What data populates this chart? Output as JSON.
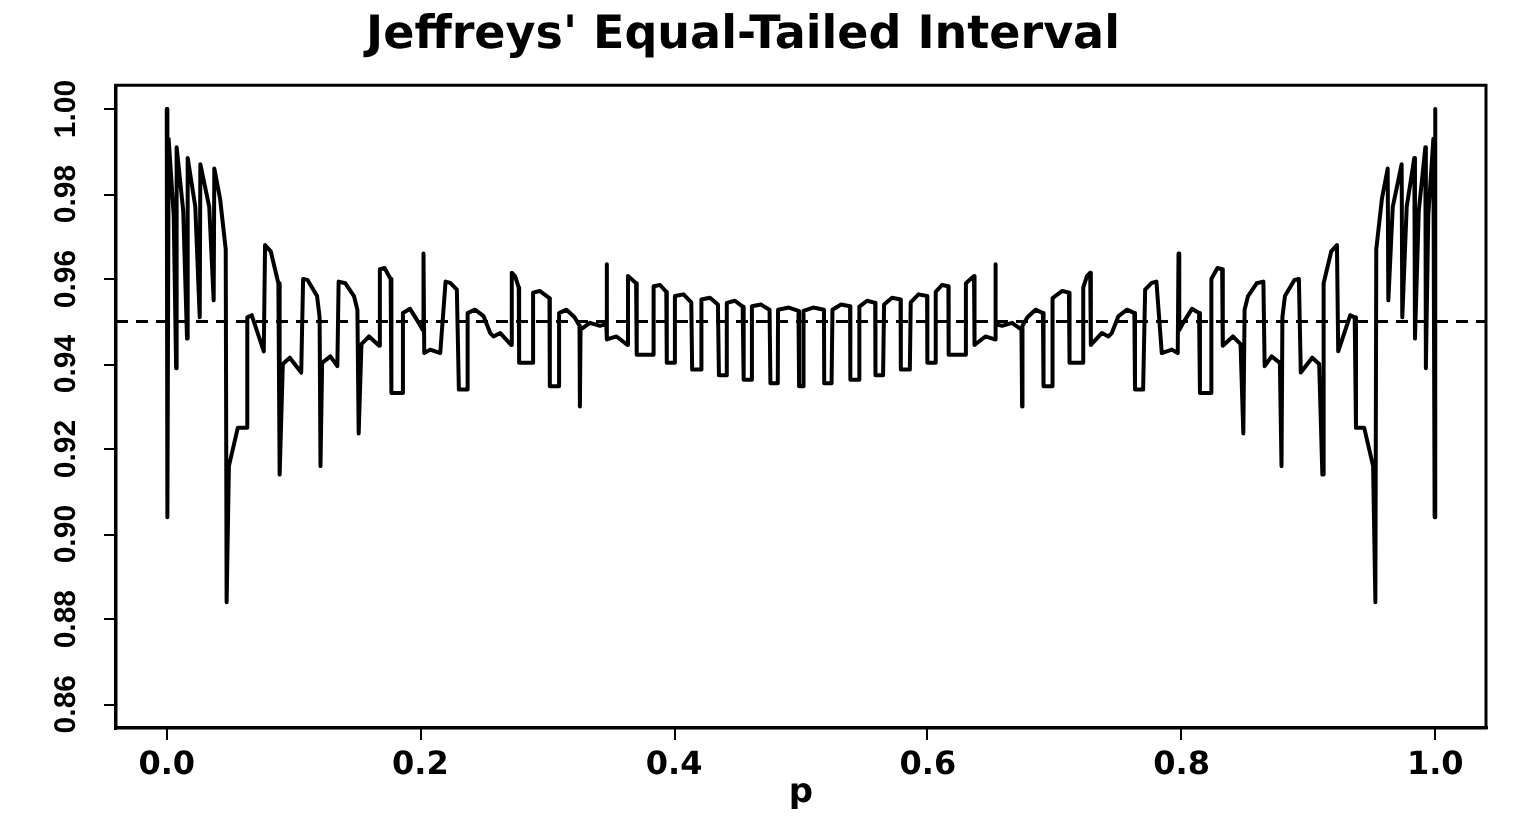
{
  "chart_data": {
    "type": "line",
    "title": "Jeffreys' Equal-Tailed Interval",
    "xlabel": "p",
    "color": "#000000",
    "line_style": "solid",
    "xlim": [
      -0.04,
      1.04
    ],
    "ylim": [
      0.8544,
      1.0056
    ],
    "xticks": [
      {
        "value": 0,
        "label": "0.0"
      },
      0.2,
      0.4,
      0.6,
      0.8,
      {
        "value": 1,
        "label": "1.0"
      }
    ],
    "yticks": [
      0.86,
      0.88,
      {
        "value": 0.9,
        "label": "0.90"
      },
      0.92,
      0.94,
      0.96,
      0.98,
      {
        "value": 1,
        "label": "1.00"
      }
    ],
    "ref_lines": [
      {
        "axis": "y",
        "value": 0.95,
        "color": "#000000",
        "line_style": "dashed"
      }
    ],
    "x": [
      0,
      0.0005,
      0.0015,
      0.0055,
      0.0074,
      0.0078,
      0.013,
      0.016,
      0.0165,
      0.0225,
      0.026,
      0.0265,
      0.0335,
      0.037,
      0.0375,
      0.042,
      0.0465,
      0.0472,
      0.049,
      0.056,
      0.0625,
      0.0635,
      0.067,
      0.0765,
      0.0775,
      0.082,
      0.088,
      0.089,
      0.0915,
      0.097,
      0.106,
      0.1075,
      0.111,
      0.1185,
      0.1205,
      0.1212,
      0.1225,
      0.129,
      0.1345,
      0.1355,
      0.1408,
      0.1476,
      0.1503,
      0.1513,
      0.1535,
      0.1595,
      0.1675,
      0.168,
      0.1717,
      0.1765,
      0.1771,
      0.1855,
      0.1862,
      0.1918,
      0.1987,
      0.2018,
      0.2024,
      0.203,
      0.2077,
      0.2156,
      0.2198,
      0.2235,
      0.2287,
      0.2303,
      0.2367,
      0.2372,
      0.243,
      0.2497,
      0.255,
      0.2576,
      0.2629,
      0.2715,
      0.272,
      0.2746,
      0.2775,
      0.2778,
      0.2883,
      0.2888,
      0.294,
      0.3017,
      0.302,
      0.3088,
      0.3093,
      0.3151,
      0.3215,
      0.3254,
      0.3257,
      0.3262,
      0.3336,
      0.3415,
      0.3465,
      0.3467,
      0.3472,
      0.3546,
      0.3632,
      0.3636,
      0.37,
      0.3705,
      0.3836,
      0.3838,
      0.3889,
      0.3938,
      0.3942,
      0.4004,
      0.4006,
      0.4074,
      0.4135,
      0.4142,
      0.4213,
      0.4215,
      0.4282,
      0.4345,
      0.4353,
      0.4413,
      0.4415,
      0.4479,
      0.454,
      0.4548,
      0.4611,
      0.4613,
      0.4684,
      0.4752,
      0.4759,
      0.4817,
      0.4819,
      0.4905,
      0.498,
      0.4985,
      0.5,
      0.5015,
      0.502,
      0.5095,
      0.5181,
      0.5183,
      0.5241,
      0.5248,
      0.5316,
      0.5387,
      0.5389,
      0.5452,
      0.546,
      0.5521,
      0.5585,
      0.5587,
      0.5647,
      0.5655,
      0.5718,
      0.5785,
      0.5787,
      0.5858,
      0.5865,
      0.5926,
      0.5994,
      0.5996,
      0.6058,
      0.6062,
      0.6111,
      0.6162,
      0.6164,
      0.6295,
      0.63,
      0.6364,
      0.6368,
      0.6454,
      0.6528,
      0.6533,
      0.6535,
      0.6585,
      0.6664,
      0.6738,
      0.6743,
      0.6746,
      0.6785,
      0.6849,
      0.6907,
      0.6912,
      0.698,
      0.6983,
      0.706,
      0.7112,
      0.7117,
      0.7222,
      0.7225,
      0.7254,
      0.728,
      0.7285,
      0.7371,
      0.7424,
      0.745,
      0.7503,
      0.757,
      0.7628,
      0.7633,
      0.7697,
      0.7713,
      0.7765,
      0.7802,
      0.7844,
      0.7923,
      0.797,
      0.7976,
      0.7982,
      0.8013,
      0.8082,
      0.8138,
      0.8145,
      0.8229,
      0.8235,
      0.8283,
      0.832,
      0.8325,
      0.8405,
      0.8465,
      0.8487,
      0.8497,
      0.8524,
      0.8592,
      0.8645,
      0.8655,
      0.871,
      0.8775,
      0.8788,
      0.8795,
      0.8815,
      0.889,
      0.8925,
      0.894,
      0.903,
      0.9085,
      0.911,
      0.912,
      0.918,
      0.9225,
      0.9235,
      0.933,
      0.9365,
      0.9375,
      0.944,
      0.951,
      0.9528,
      0.9535,
      0.958,
      0.9625,
      0.963,
      0.9665,
      0.9735,
      0.974,
      0.9775,
      0.9835,
      0.984,
      0.987,
      0.9922,
      0.9926,
      0.9945,
      0.9985,
      0.9995,
      1
    ],
    "values": [
      1,
      0.904,
      0.993,
      0.975,
      0.939,
      0.991,
      0.976,
      0.946,
      0.9885,
      0.977,
      0.951,
      0.987,
      0.977,
      0.955,
      0.986,
      0.979,
      0.967,
      0.884,
      0.916,
      0.925,
      0.925,
      0.951,
      0.9515,
      0.943,
      0.968,
      0.9665,
      0.959,
      0.914,
      0.94,
      0.9415,
      0.938,
      0.96,
      0.9598,
      0.956,
      0.951,
      0.916,
      0.9403,
      0.9418,
      0.9395,
      0.9594,
      0.959,
      0.956,
      0.9528,
      0.9237,
      0.9447,
      0.9465,
      0.9443,
      0.9623,
      0.9626,
      0.96,
      0.9332,
      0.9332,
      0.952,
      0.953,
      0.9497,
      0.948,
      0.966,
      0.9426,
      0.9434,
      0.9426,
      0.9594,
      0.9591,
      0.9575,
      0.934,
      0.934,
      0.952,
      0.9528,
      0.9513,
      0.9473,
      0.9465,
      0.9473,
      0.9445,
      0.9615,
      0.9607,
      0.958,
      0.9403,
      0.9403,
      0.9568,
      0.9572,
      0.9555,
      0.9348,
      0.9348,
      0.952,
      0.9528,
      0.951,
      0.949,
      0.93,
      0.9481,
      0.9497,
      0.949,
      0.9494,
      0.9635,
      0.9458,
      0.9465,
      0.9445,
      0.9607,
      0.959,
      0.9422,
      0.9422,
      0.9583,
      0.9586,
      0.957,
      0.9403,
      0.9403,
      0.956,
      0.9564,
      0.9545,
      0.9387,
      0.9387,
      0.9552,
      0.9556,
      0.954,
      0.9374,
      0.9374,
      0.9544,
      0.9549,
      0.9535,
      0.9363,
      0.9363,
      0.9536,
      0.954,
      0.9528,
      0.9355,
      0.9355,
      0.9528,
      0.9533,
      0.9525,
      0.9348,
      0.9348,
      0.9348,
      0.9525,
      0.9533,
      0.9528,
      0.9355,
      0.9355,
      0.9528,
      0.954,
      0.9536,
      0.9363,
      0.9363,
      0.9535,
      0.9549,
      0.9544,
      0.9374,
      0.9374,
      0.954,
      0.9556,
      0.9552,
      0.9387,
      0.9387,
      0.9545,
      0.9564,
      0.956,
      0.9403,
      0.9403,
      0.957,
      0.9586,
      0.9583,
      0.9422,
      0.9422,
      0.959,
      0.9607,
      0.9445,
      0.9465,
      0.9458,
      0.9635,
      0.9494,
      0.949,
      0.9497,
      0.9481,
      0.93,
      0.949,
      0.951,
      0.9528,
      0.952,
      0.9348,
      0.9348,
      0.9555,
      0.9572,
      0.9568,
      0.9403,
      0.9403,
      0.958,
      0.9607,
      0.9615,
      0.9445,
      0.9473,
      0.9465,
      0.9473,
      0.9513,
      0.9528,
      0.952,
      0.934,
      0.934,
      0.9575,
      0.9591,
      0.9594,
      0.9426,
      0.9434,
      0.9426,
      0.966,
      0.948,
      0.9497,
      0.953,
      0.952,
      0.9332,
      0.9332,
      0.96,
      0.9626,
      0.9623,
      0.9443,
      0.9465,
      0.9447,
      0.9237,
      0.9528,
      0.956,
      0.959,
      0.9594,
      0.9395,
      0.9418,
      0.9403,
      0.916,
      0.951,
      0.956,
      0.9598,
      0.96,
      0.938,
      0.9415,
      0.94,
      0.914,
      0.959,
      0.9665,
      0.968,
      0.943,
      0.9515,
      0.951,
      0.925,
      0.925,
      0.916,
      0.884,
      0.967,
      0.979,
      0.986,
      0.955,
      0.977,
      0.987,
      0.951,
      0.977,
      0.9885,
      0.946,
      0.976,
      0.991,
      0.939,
      0.975,
      0.993,
      0.904,
      1
    ]
  }
}
